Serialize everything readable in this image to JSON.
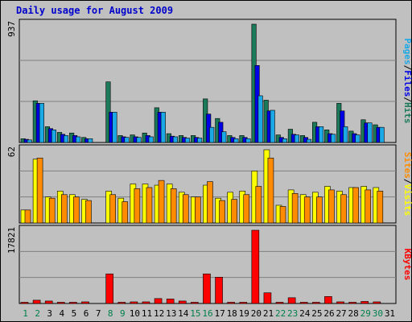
{
  "chart_data": {
    "type": "bar",
    "title": "Daily usage for August 2009",
    "categories": [
      "1",
      "2",
      "3",
      "4",
      "5",
      "6",
      "7",
      "8",
      "9",
      "10",
      "11",
      "12",
      "13",
      "14",
      "15",
      "16",
      "17",
      "18",
      "19",
      "20",
      "21",
      "22",
      "23",
      "24",
      "25",
      "26",
      "27",
      "28",
      "29",
      "30",
      "31"
    ],
    "weekend_days": [
      "1",
      "2",
      "8",
      "9",
      "15",
      "16",
      "22",
      "23",
      "29",
      "30"
    ],
    "colors": {
      "hits": "#1a7a5a",
      "files": "#0000e6",
      "pages": "#1aa8e6",
      "visits": "#ffff00",
      "sites": "#ff8c00",
      "kbytes": "#ff0000",
      "title": "#0000cc",
      "weekday_label": "#000000",
      "weekend_label": "#00804a",
      "panel_bg": "#c0c0c0"
    },
    "panels": [
      {
        "ymax_label": "937",
        "ymax": 937,
        "legend": [
          {
            "text": "Pages",
            "color": "#1aa8e6"
          },
          {
            "text": "/",
            "color": "#000000"
          },
          {
            "text": "Files",
            "color": "#0000e6"
          },
          {
            "text": "/",
            "color": "#000000"
          },
          {
            "text": "Hits",
            "color": "#1a7a5a"
          }
        ],
        "series": [
          {
            "name": "Hits",
            "color": "#1a7a5a",
            "values": [
              30,
              330,
              125,
              80,
              75,
              40,
              0,
              480,
              55,
              60,
              75,
              275,
              70,
              55,
              55,
              345,
              190,
              55,
              55,
              937,
              335,
              60,
              105,
              55,
              160,
              100,
              310,
              90,
              180,
              140,
              0
            ]
          },
          {
            "name": "Files",
            "color": "#0000e6",
            "values": [
              25,
              310,
              110,
              65,
              55,
              30,
              0,
              240,
              45,
              45,
              55,
              240,
              50,
              40,
              40,
              225,
              160,
              40,
              40,
              610,
              250,
              40,
              65,
              40,
              125,
              70,
              250,
              70,
              155,
              120,
              0
            ]
          },
          {
            "name": "Pages",
            "color": "#1aa8e6",
            "values": [
              20,
              310,
              100,
              55,
              45,
              30,
              0,
              240,
              40,
              40,
              45,
              240,
              45,
              35,
              35,
              120,
              85,
              30,
              30,
              370,
              255,
              30,
              60,
              25,
              125,
              65,
              125,
              60,
              155,
              120,
              0
            ]
          }
        ]
      },
      {
        "ymax_label": "62",
        "ymax": 62,
        "legend": [
          {
            "text": "Sites",
            "color": "#ff8c00"
          },
          {
            "text": "/",
            "color": "#000000"
          },
          {
            "text": "Visits",
            "color": "#ffff00"
          }
        ],
        "series": [
          {
            "name": "Visits",
            "color": "#ffff00",
            "values": [
              11,
              54,
              22,
              27,
              24,
              20,
              0,
              27,
              21,
              33,
              33,
              32,
              33,
              26,
              22,
              32,
              21,
              26,
              27,
              44,
              62,
              15,
              28,
              24,
              26,
              31,
              27,
              30,
              31,
              30,
              0
            ]
          },
          {
            "name": "Sites",
            "color": "#ff8c00",
            "values": [
              11,
              55,
              21,
              24,
              22,
              19,
              0,
              24,
              18,
              29,
              30,
              36,
              29,
              24,
              22,
              35,
              19,
              20,
              24,
              31,
              55,
              14,
              25,
              22,
              22,
              28,
              24,
              30,
              28,
              27,
              0
            ]
          }
        ]
      },
      {
        "ymax_label": "17821",
        "ymax": 17821,
        "legend": [
          {
            "text": "KBytes",
            "color": "#ff0000"
          }
        ],
        "series": [
          {
            "name": "KBytes",
            "color": "#ff0000",
            "values": [
              300,
              800,
              600,
              300,
              300,
              400,
              0,
              7200,
              300,
              400,
              400,
              1200,
              1100,
              600,
              300,
              7200,
              6400,
              300,
              300,
              17821,
              2600,
              300,
              1400,
              300,
              300,
              1700,
              400,
              300,
              500,
              400,
              0
            ]
          }
        ]
      }
    ]
  }
}
